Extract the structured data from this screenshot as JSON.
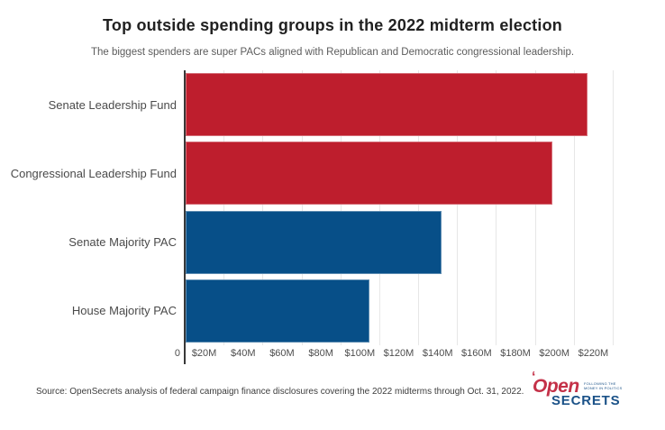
{
  "title": "Top outside spending groups in the 2022 midterm election",
  "subtitle": "The biggest spenders are super PACs aligned with Republican and Democratic congressional leadership.",
  "source_note": "Source: OpenSecrets analysis of federal campaign finance disclosures covering the 2022 midterms through Oct. 31, 2022.",
  "logo": {
    "open": "Open",
    "secrets": "SECRETS",
    "tagline_line1": "FOLLOWING THE",
    "tagline_line2": "MONEY IN POLITICS"
  },
  "colors": {
    "republican_red": "#be1e2d",
    "democratic_blue": "#074f88",
    "axis_line": "#383838",
    "gridline": "#e7e7e7",
    "logo_red": "#c43148",
    "logo_blue": "#1b5288"
  },
  "chart_data": {
    "type": "bar",
    "orientation": "horizontal",
    "title": "Top outside spending groups in the 2022 midterm election",
    "subtitle": "The biggest spenders are super PACs aligned with Republican and Democratic congressional leadership.",
    "categories": [
      "Senate Leadership Fund",
      "Congressional Leadership Fund",
      "Senate Majority PAC",
      "House Majority PAC"
    ],
    "values": [
      207,
      189,
      132,
      95
    ],
    "value_unit": "million USD",
    "bar_colors": [
      "#be1e2d",
      "#be1e2d",
      "#074f88",
      "#074f88"
    ],
    "xlim": [
      0,
      220
    ],
    "x_ticks": [
      0,
      20,
      40,
      60,
      80,
      100,
      120,
      140,
      160,
      180,
      200,
      220
    ],
    "x_tick_labels": [
      "0",
      "$20M",
      "$40M",
      "$60M",
      "$80M",
      "$100M",
      "$120M",
      "$140M",
      "$160M",
      "$180M",
      "$200M",
      "$220M"
    ],
    "grid": "vertical",
    "legend": "none"
  }
}
